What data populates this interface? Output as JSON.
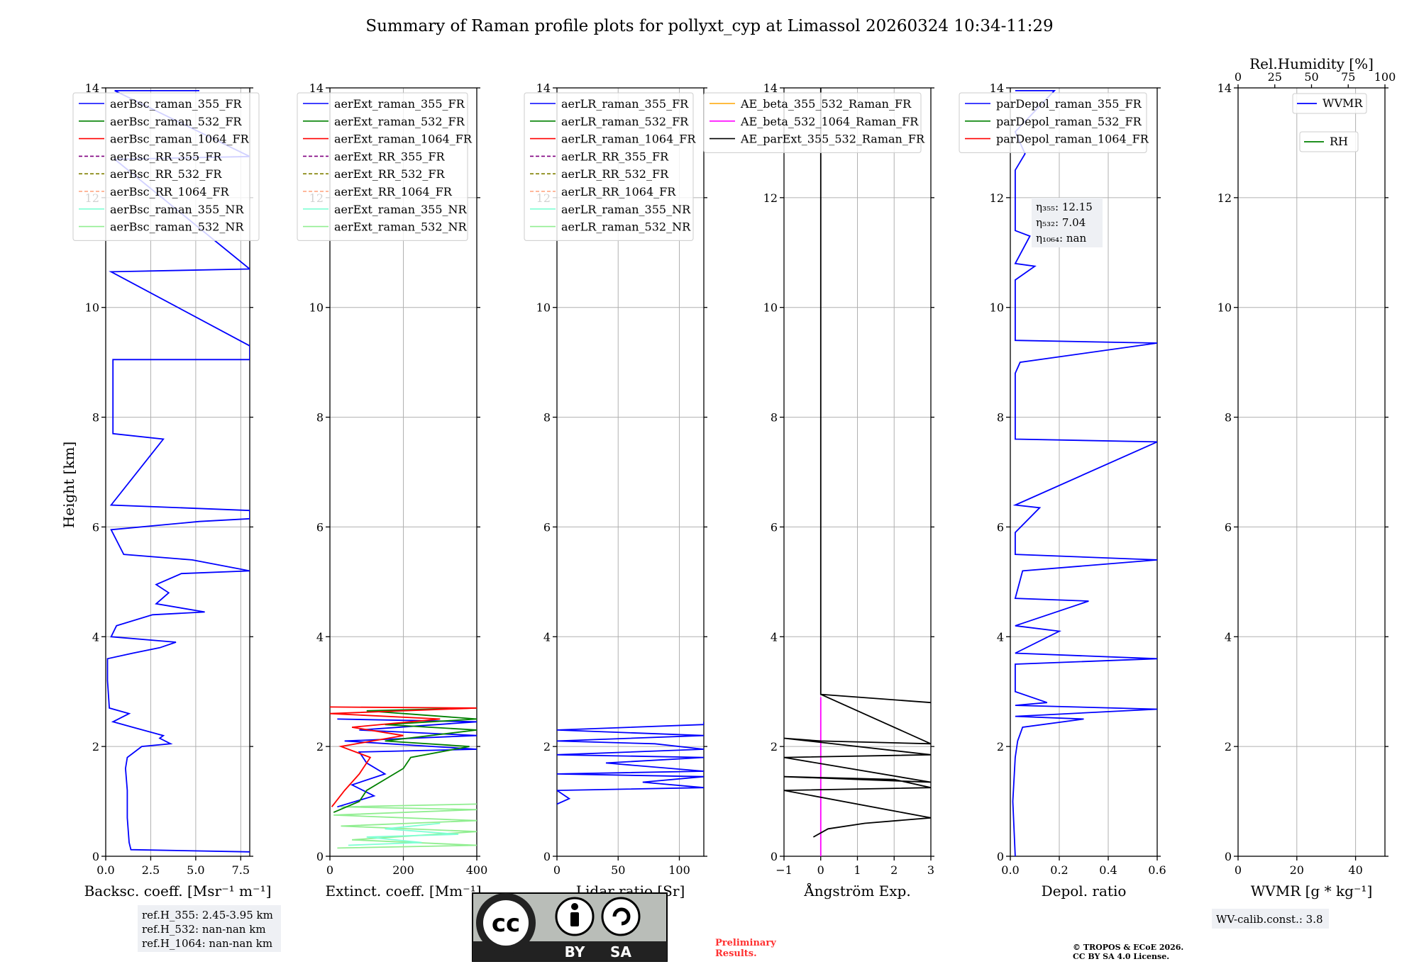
{
  "title": "Summary of Raman profile plots for pollyxt_cyp at Limassol 20260324 10:34-11:29",
  "ylabel": "Height [km]",
  "yticks": [
    "0",
    "2",
    "4",
    "6",
    "8",
    "10",
    "12",
    "14"
  ],
  "colors": {
    "c355": "#0000ff",
    "c532": "#008000",
    "c1064": "#ff0000",
    "rr355": "#800080",
    "rr532": "#808000",
    "rr1064": "#ffa07a",
    "nr355": "#7fffd4",
    "nr532": "#90ee90",
    "ae1": "#ffa500",
    "ae2": "#ff00ff",
    "ae3": "#000000",
    "grid": "#b0b0b0",
    "note_bg": "#eef0f4",
    "prelim": "#ff3030"
  },
  "chart_data": [
    {
      "type": "line",
      "id": "bsc",
      "xlabel": "Backsc. coeff. [Msr⁻¹ m⁻¹]",
      "xlim": [
        0,
        8
      ],
      "ylim": [
        0,
        14
      ],
      "xticks": [
        "0.0",
        "2.5",
        "5.0",
        "7.5"
      ],
      "xtick_values": [
        0,
        2.5,
        5,
        7.5
      ],
      "legend": [
        "aerBsc_raman_355_FR",
        "aerBsc_raman_532_FR",
        "aerBsc_raman_1064_FR",
        "aerBsc_RR_355_FR",
        "aerBsc_RR_532_FR",
        "aerBsc_RR_1064_FR",
        "aerBsc_raman_355_NR",
        "aerBsc_raman_532_NR"
      ],
      "series": [
        {
          "name": "aerBsc_raman_355_FR",
          "points": [
            [
              8,
              0.08
            ],
            [
              1.4,
              0.12
            ],
            [
              1.3,
              0.25
            ],
            [
              1.2,
              0.7
            ],
            [
              1.2,
              1.2
            ],
            [
              1.1,
              1.6
            ],
            [
              1.2,
              1.8
            ],
            [
              2,
              2
            ],
            [
              3.6,
              2.05
            ],
            [
              3,
              2.15
            ],
            [
              3.2,
              2.2
            ],
            [
              1.5,
              2.35
            ],
            [
              0.4,
              2.45
            ],
            [
              1.3,
              2.6
            ],
            [
              0.2,
              2.7
            ],
            [
              0.1,
              3.2
            ],
            [
              0.1,
              3.6
            ],
            [
              1.5,
              3.7
            ],
            [
              3,
              3.8
            ],
            [
              3.9,
              3.9
            ],
            [
              0.3,
              4
            ],
            [
              0.6,
              4.2
            ],
            [
              2.6,
              4.4
            ],
            [
              5.5,
              4.45
            ],
            [
              2.8,
              4.6
            ],
            [
              3.5,
              4.8
            ],
            [
              2.8,
              4.95
            ],
            [
              4.2,
              5.15
            ],
            [
              8,
              5.2
            ],
            [
              4.8,
              5.4
            ],
            [
              1,
              5.5
            ],
            [
              0.3,
              5.95
            ],
            [
              5.2,
              6.1
            ],
            [
              8,
              6.15
            ],
            [
              8,
              6.3
            ],
            [
              0.3,
              6.4
            ],
            [
              3.2,
              7.6
            ],
            [
              0.4,
              7.7
            ],
            [
              0.4,
              9.05
            ],
            [
              8,
              9.05
            ],
            [
              8,
              9.3
            ],
            [
              0.3,
              10.65
            ],
            [
              8,
              10.7
            ],
            [
              0.5,
              12.7
            ],
            [
              8,
              12.75
            ],
            [
              0.5,
              13.95
            ],
            [
              5.2,
              13.95
            ]
          ]
        }
      ]
    },
    {
      "type": "line",
      "id": "ext",
      "xlabel": "Extinct. coeff. [Mm⁻¹]",
      "xlim": [
        0,
        400
      ],
      "ylim": [
        0,
        14
      ],
      "xticks": [
        "0",
        "200",
        "400"
      ],
      "xtick_values": [
        0,
        200,
        400
      ],
      "legend": [
        "aerExt_raman_355_FR",
        "aerExt_raman_532_FR",
        "aerExt_raman_1064_FR",
        "aerExt_RR_355_FR",
        "aerExt_RR_532_FR",
        "aerExt_RR_1064_FR",
        "aerExt_raman_355_NR",
        "aerExt_raman_532_NR"
      ],
      "series": [
        {
          "name": "aerExt_raman_532_NR",
          "points": [
            [
              20,
              0.15
            ],
            [
              400,
              0.2
            ],
            [
              60,
              0.3
            ],
            [
              400,
              0.45
            ],
            [
              30,
              0.55
            ],
            [
              400,
              0.65
            ],
            [
              10,
              0.75
            ],
            [
              400,
              0.85
            ],
            [
              30,
              0.9
            ],
            [
              400,
              0.95
            ]
          ]
        },
        {
          "name": "aerExt_raman_355_NR",
          "points": [
            [
              50,
              0.2
            ],
            [
              250,
              0.25
            ],
            [
              100,
              0.35
            ],
            [
              350,
              0.4
            ],
            [
              150,
              0.5
            ],
            [
              300,
              0.6
            ]
          ]
        },
        {
          "name": "aerExt_raman_355_FR",
          "points": [
            [
              20,
              0.9
            ],
            [
              120,
              1.1
            ],
            [
              60,
              1.3
            ],
            [
              150,
              1.5
            ],
            [
              100,
              1.7
            ],
            [
              80,
              1.9
            ],
            [
              400,
              1.95
            ],
            [
              40,
              2.1
            ],
            [
              400,
              2.2
            ],
            [
              80,
              2.3
            ],
            [
              400,
              2.45
            ],
            [
              20,
              2.5
            ]
          ]
        },
        {
          "name": "aerExt_raman_532_FR",
          "points": [
            [
              10,
              0.8
            ],
            [
              80,
              1
            ],
            [
              100,
              1.2
            ],
            [
              150,
              1.4
            ],
            [
              200,
              1.6
            ],
            [
              220,
              1.8
            ],
            [
              380,
              2
            ],
            [
              150,
              2.1
            ],
            [
              400,
              2.3
            ],
            [
              150,
              2.4
            ],
            [
              400,
              2.5
            ],
            [
              100,
              2.65
            ],
            [
              400,
              2.7
            ]
          ]
        },
        {
          "name": "aerExt_raman_1064_FR",
          "points": [
            [
              5,
              0.9
            ],
            [
              40,
              1.2
            ],
            [
              80,
              1.5
            ],
            [
              110,
              1.8
            ],
            [
              30,
              2
            ],
            [
              200,
              2.2
            ],
            [
              60,
              2.35
            ],
            [
              300,
              2.5
            ],
            [
              0,
              2.6
            ],
            [
              400,
              2.7
            ],
            [
              0,
              2.72
            ]
          ]
        }
      ]
    },
    {
      "type": "line",
      "id": "lr",
      "xlabel": "Lidar ratio [Sr]",
      "xlim": [
        0,
        120
      ],
      "ylim": [
        0,
        14
      ],
      "xticks": [
        "0",
        "50",
        "100"
      ],
      "xtick_values": [
        0,
        50,
        100
      ],
      "legend": [
        "aerLR_raman_355_FR",
        "aerLR_raman_532_FR",
        "aerLR_raman_1064_FR",
        "aerLR_RR_355_FR",
        "aerLR_RR_532_FR",
        "aerLR_RR_1064_FR",
        "aerLR_raman_355_NR",
        "aerLR_raman_532_NR"
      ],
      "series": [
        {
          "name": "aerLR_raman_355_FR",
          "points": [
            [
              0,
              0.95
            ],
            [
              10,
              1.05
            ],
            [
              0,
              1.2
            ],
            [
              120,
              1.25
            ],
            [
              70,
              1.35
            ],
            [
              120,
              1.45
            ],
            [
              0,
              1.5
            ],
            [
              120,
              1.55
            ],
            [
              40,
              1.7
            ],
            [
              120,
              1.8
            ],
            [
              0,
              1.85
            ],
            [
              120,
              1.95
            ],
            [
              80,
              2.05
            ],
            [
              0,
              2.1
            ],
            [
              120,
              2.2
            ],
            [
              0,
              2.3
            ],
            [
              120,
              2.4
            ],
            [
              120,
              2.45
            ]
          ]
        }
      ]
    },
    {
      "type": "line",
      "id": "ae",
      "xlabel": "Ångström Exp.",
      "xlim": [
        -1,
        3
      ],
      "ylim": [
        0,
        14
      ],
      "xticks": [
        "−1",
        "0",
        "1",
        "2",
        "3"
      ],
      "xtick_values": [
        -1,
        0,
        1,
        2,
        3
      ],
      "legend": [
        "AE_beta_355_532_Raman_FR",
        "AE_beta_532_1064_Raman_FR",
        "AE_parExt_355_532_Raman_FR"
      ],
      "series": [
        {
          "name": "AE_beta_532_1064_Raman_FR",
          "points": [
            [
              0,
              0
            ],
            [
              0,
              2.9
            ]
          ]
        },
        {
          "name": "AE_parExt_355_532_Raman_FR",
          "points": [
            [
              -0.2,
              0.35
            ],
            [
              0.2,
              0.5
            ],
            [
              1.2,
              0.6
            ],
            [
              3,
              0.7
            ],
            [
              3,
              0.7
            ],
            [
              -1,
              1.2
            ],
            [
              3,
              1.25
            ],
            [
              2,
              1.4
            ],
            [
              -1,
              1.45
            ],
            [
              3,
              1.35
            ],
            [
              -1,
              1.8
            ],
            [
              3,
              1.85
            ],
            [
              -1,
              2.15
            ],
            [
              0,
              2.1
            ],
            [
              3,
              2.05
            ],
            [
              0,
              2.95
            ],
            [
              3,
              2.8
            ],
            [
              0,
              2.95
            ],
            [
              0,
              14
            ]
          ]
        }
      ]
    },
    {
      "type": "line",
      "id": "depol",
      "xlabel": "Depol. ratio",
      "xlim": [
        0,
        0.6
      ],
      "ylim": [
        0,
        14
      ],
      "xticks": [
        "0.0",
        "0.2",
        "0.4",
        "0.6"
      ],
      "xtick_values": [
        0,
        0.2,
        0.4,
        0.6
      ],
      "legend": [
        "parDepol_raman_355_FR",
        "parDepol_raman_532_FR",
        "parDepol_raman_1064_FR"
      ],
      "annotation": [
        "η₃₅₅: 12.15",
        "η₅₃₂: 7.04",
        "η₁₀₆₄: nan"
      ],
      "series": [
        {
          "name": "parDepol_raman_355_FR",
          "points": [
            [
              0.02,
              0
            ],
            [
              0.01,
              1
            ],
            [
              0.02,
              1.8
            ],
            [
              0.03,
              2.1
            ],
            [
              0.05,
              2.35
            ],
            [
              0.3,
              2.5
            ],
            [
              0.02,
              2.55
            ],
            [
              0.6,
              2.68
            ],
            [
              0.02,
              2.75
            ],
            [
              0.15,
              2.8
            ],
            [
              0.02,
              3
            ],
            [
              0.02,
              3.5
            ],
            [
              0.6,
              3.6
            ],
            [
              0.02,
              3.7
            ],
            [
              0.2,
              4.1
            ],
            [
              0.02,
              4.2
            ],
            [
              0.32,
              4.65
            ],
            [
              0.02,
              4.7
            ],
            [
              0.05,
              5.2
            ],
            [
              0.6,
              5.4
            ],
            [
              0.02,
              5.5
            ],
            [
              0.02,
              5.9
            ],
            [
              0.12,
              6.35
            ],
            [
              0.02,
              6.4
            ],
            [
              0.6,
              7.55
            ],
            [
              0.02,
              7.6
            ],
            [
              0.02,
              8.8
            ],
            [
              0.04,
              9
            ],
            [
              0.6,
              9.35
            ],
            [
              0.02,
              9.4
            ],
            [
              0.02,
              10.5
            ],
            [
              0.1,
              10.75
            ],
            [
              0.02,
              10.8
            ],
            [
              0.08,
              11.3
            ],
            [
              0.02,
              11.4
            ],
            [
              0.02,
              12.5
            ],
            [
              0.06,
              12.8
            ],
            [
              0.02,
              13.2
            ],
            [
              0.18,
              13.95
            ],
            [
              0.02,
              13.95
            ]
          ]
        }
      ]
    },
    {
      "type": "line",
      "id": "wv",
      "xlabel": "WVMR [g * kg⁻¹]",
      "xlim": [
        0,
        50
      ],
      "ylim": [
        0,
        14
      ],
      "xticks": [
        "0",
        "20",
        "40"
      ],
      "xtick_values": [
        0,
        20,
        40
      ],
      "top_label": "Rel.Humidity [%]",
      "top_xticks": [
        "0",
        "25",
        "50",
        "75",
        "100"
      ],
      "legend": [
        "WVMR",
        "RH"
      ],
      "series": []
    }
  ],
  "notes": {
    "refh_355": "ref.H_355: 2.45-3.95 km",
    "refh_532": "ref.H_532: nan-nan km",
    "refh_1064": "ref.H_1064: nan-nan km",
    "wv_calib": "WV-calib.const.: 3.8",
    "prelim_1": "Preliminary",
    "prelim_2": "Results.",
    "copyright_1": "© TROPOS & ECoE 2026.",
    "copyright_2": "CC BY SA 4.0 License.",
    "cc_mark": "cc",
    "cc_by": "BY",
    "cc_sa": "SA"
  }
}
